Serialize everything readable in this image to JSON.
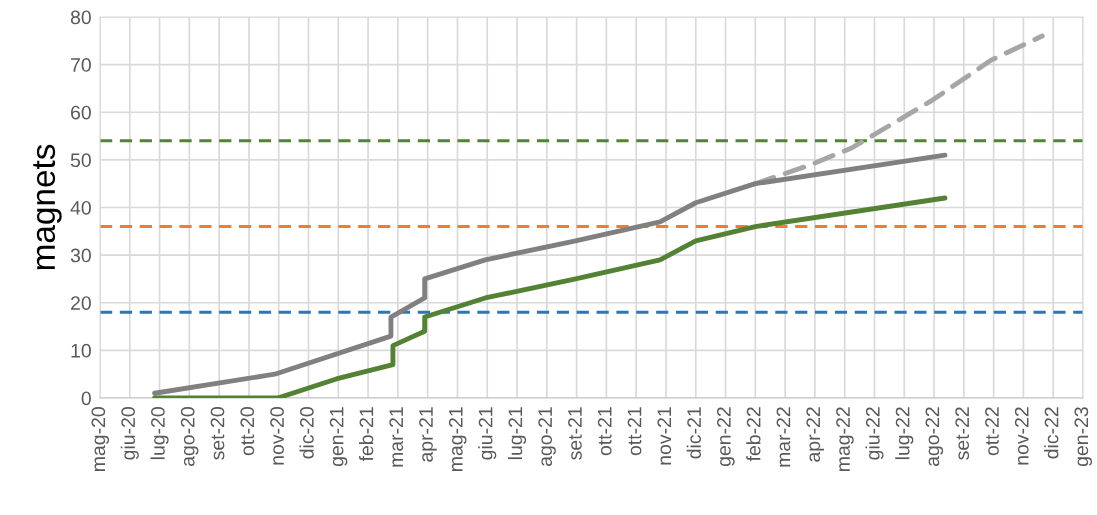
{
  "chart_data": {
    "type": "line",
    "ylabel": "magnets",
    "ylim": [
      0,
      80
    ],
    "yticks": [
      0,
      10,
      20,
      30,
      40,
      50,
      60,
      70,
      80
    ],
    "xlim": [
      "2020-05-09",
      "2023-01-24"
    ],
    "xticks": [
      {
        "value": "2020-05-09",
        "label": "mag-20"
      },
      {
        "value": "2020-06-08",
        "label": "giu-20"
      },
      {
        "value": "2020-07-08",
        "label": "lug-20"
      },
      {
        "value": "2020-08-07",
        "label": "ago-20"
      },
      {
        "value": "2020-09-06",
        "label": "set-20"
      },
      {
        "value": "2020-10-06",
        "label": "ott-20"
      },
      {
        "value": "2020-11-05",
        "label": "nov-20"
      },
      {
        "value": "2020-12-05",
        "label": "dic-20"
      },
      {
        "value": "2021-01-04",
        "label": "gen-21"
      },
      {
        "value": "2021-02-03",
        "label": "feb-21"
      },
      {
        "value": "2021-03-05",
        "label": "mar-21"
      },
      {
        "value": "2021-04-04",
        "label": "apr-21"
      },
      {
        "value": "2021-05-04",
        "label": "mag-21"
      },
      {
        "value": "2021-06-03",
        "label": "giu-21"
      },
      {
        "value": "2021-07-03",
        "label": "lug-21"
      },
      {
        "value": "2021-08-02",
        "label": "ago-21"
      },
      {
        "value": "2021-09-01",
        "label": "set-21"
      },
      {
        "value": "2021-10-01",
        "label": "ott-21"
      },
      {
        "value": "2021-10-31",
        "label": "ott-21"
      },
      {
        "value": "2021-11-30",
        "label": "nov-21"
      },
      {
        "value": "2021-12-30",
        "label": "dic-21"
      },
      {
        "value": "2022-01-29",
        "label": "gen-22"
      },
      {
        "value": "2022-02-28",
        "label": "feb-22"
      },
      {
        "value": "2022-03-30",
        "label": "mar-22"
      },
      {
        "value": "2022-04-29",
        "label": "apr-22"
      },
      {
        "value": "2022-05-29",
        "label": "mag-22"
      },
      {
        "value": "2022-06-28",
        "label": "giu-22"
      },
      {
        "value": "2022-07-28",
        "label": "lug-22"
      },
      {
        "value": "2022-08-27",
        "label": "ago-22"
      },
      {
        "value": "2022-09-26",
        "label": "set-22"
      },
      {
        "value": "2022-10-26",
        "label": "ott-22"
      },
      {
        "value": "2022-11-25",
        "label": "nov-22"
      },
      {
        "value": "2022-12-25",
        "label": "dic-22"
      },
      {
        "value": "2023-01-24",
        "label": "gen-23"
      }
    ],
    "grid": true,
    "line_style": "solid",
    "series": [
      {
        "color": "#a6a6a6",
        "line_style": "dashed",
        "x": [
          "2022-02-28",
          "2022-04-25",
          "2022-06-05",
          "2022-08-25",
          "2022-10-24",
          "2022-12-14"
        ],
        "values": [
          45,
          49,
          52.5,
          62.5,
          71,
          76
        ]
      },
      {
        "color": "#808080",
        "x": [
          "2020-07-03",
          "2020-11-01",
          "2021-02-26",
          "2021-02-26",
          "2021-04-01",
          "2021-04-01",
          "2021-06-01",
          "2021-08-31",
          "2021-11-24",
          "2021-12-30",
          "2022-02-28",
          "2022-09-07"
        ],
        "values": [
          1,
          5,
          13,
          17,
          21,
          25,
          29,
          33,
          37,
          41,
          45,
          51
        ]
      },
      {
        "color": "#548235",
        "x": [
          "2020-07-03",
          "2020-11-04",
          "2021-01-02",
          "2021-02-28",
          "2021-02-28",
          "2021-04-01",
          "2021-04-01",
          "2021-06-01",
          "2021-08-31",
          "2021-11-24",
          "2021-12-30",
          "2022-02-28",
          "2022-09-07"
        ],
        "values": [
          0,
          0,
          4,
          7,
          11,
          14,
          17,
          21,
          25,
          29,
          33,
          36,
          42
        ]
      }
    ],
    "ref_lines": [
      {
        "axis": "y",
        "value": 18,
        "color": "#2e75b6",
        "line_style": "dashed"
      },
      {
        "axis": "y",
        "value": 36,
        "color": "#ed7d31",
        "line_style": "dashed"
      },
      {
        "axis": "y",
        "value": 54,
        "color": "#548235",
        "line_style": "dashed"
      }
    ]
  }
}
